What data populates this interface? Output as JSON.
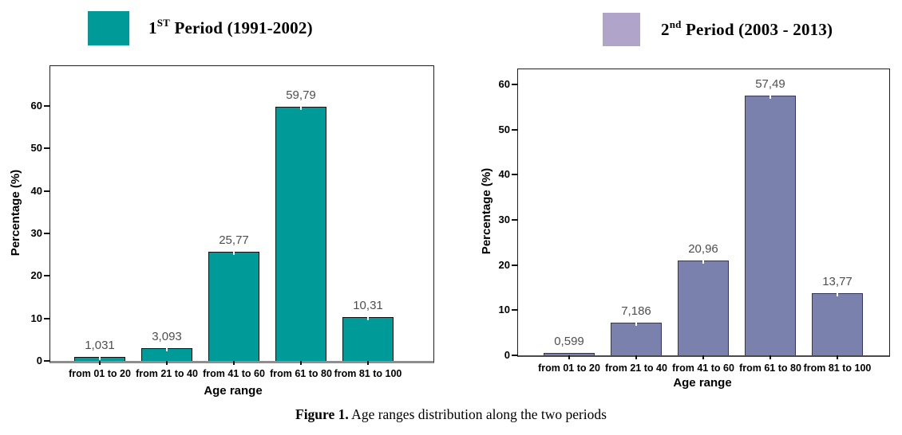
{
  "legend": {
    "first": {
      "num": "1",
      "sup": "ST",
      "rest": " Period (1991-2002)",
      "color": "#009a98"
    },
    "second": {
      "num": "2",
      "sup": "nd",
      "rest": " Period (2003 - 2013)",
      "color": "#b0a4cb"
    }
  },
  "caption": {
    "bold": "Figure 1.",
    "rest": " Age ranges distribution along the two periods"
  },
  "chart_data": [
    {
      "type": "bar",
      "title": "1st Period (1991-2002)",
      "categories": [
        "from 01 to 20",
        "from 21 to 40",
        "from 41 to 60",
        "from 61 to 80",
        "from 81 to 100"
      ],
      "values": [
        1.031,
        3.093,
        25.77,
        59.79,
        10.31
      ],
      "value_labels": [
        "1,031",
        "3,093",
        "25,77",
        "59,79",
        "10,31"
      ],
      "xlabel": "Age range",
      "ylabel": "Percentage (%)",
      "ylim": [
        0,
        60
      ],
      "ytick_step": 10,
      "grid": false,
      "legend_position": "top-left",
      "bar_color": "#009a98",
      "bar_border": "#101010"
    },
    {
      "type": "bar",
      "title": "2nd Period (2003 - 2013)",
      "categories": [
        "from 01 to 20",
        "from 21 to 40",
        "from 41 to 60",
        "from 61 to 80",
        "from 81 to 100"
      ],
      "values": [
        0.599,
        7.186,
        20.96,
        57.49,
        13.77
      ],
      "value_labels": [
        "0,599",
        "7,186",
        "20,96",
        "57,49",
        "13,77"
      ],
      "xlabel": "Age range",
      "ylabel": "Percentage (%)",
      "ylim": [
        0,
        60
      ],
      "ytick_step": 10,
      "grid": false,
      "legend_position": "top-right",
      "bar_color": "#7b81ad",
      "bar_border": "#34345a"
    }
  ]
}
